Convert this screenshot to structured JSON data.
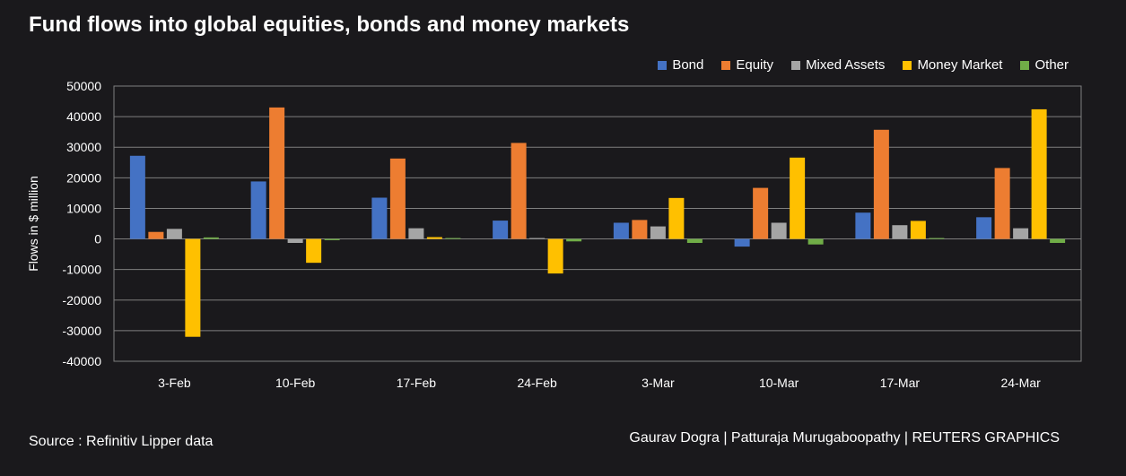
{
  "title": "Fund flows into global equities, bonds and money markets",
  "source": "Source : Refinitiv Lipper data",
  "credit": "Gaurav Dogra | Patturaja Murugaboopathy | REUTERS GRAPHICS",
  "chart_data": {
    "type": "bar",
    "ylabel": "Flows in $ million",
    "ylim": [
      -40000,
      50000
    ],
    "yticks": [
      50000,
      40000,
      30000,
      20000,
      10000,
      0,
      -10000,
      -20000,
      -30000,
      -40000
    ],
    "grid": true,
    "legend_position": "top-right",
    "categories": [
      "3-Feb",
      "10-Feb",
      "17-Feb",
      "24-Feb",
      "3-Mar",
      "10-Mar",
      "17-Mar",
      "24-Mar"
    ],
    "series": [
      {
        "name": "Bond",
        "color": "#4472c4",
        "values": [
          27200,
          18800,
          13500,
          6000,
          5300,
          -2500,
          8600,
          7100
        ]
      },
      {
        "name": "Equity",
        "color": "#ed7d31",
        "values": [
          2300,
          43000,
          26300,
          31400,
          6200,
          16700,
          35700,
          23200
        ]
      },
      {
        "name": "Mixed Assets",
        "color": "#a5a5a5",
        "values": [
          3300,
          -1300,
          3500,
          300,
          4100,
          5300,
          4500,
          3500
        ]
      },
      {
        "name": "Money Market",
        "color": "#ffc000",
        "values": [
          -32000,
          -7800,
          600,
          -11300,
          13400,
          26600,
          5900,
          42400
        ]
      },
      {
        "name": "Other",
        "color": "#70ad47",
        "values": [
          500,
          -400,
          300,
          -800,
          -1300,
          -1800,
          300,
          -1300
        ]
      }
    ]
  }
}
